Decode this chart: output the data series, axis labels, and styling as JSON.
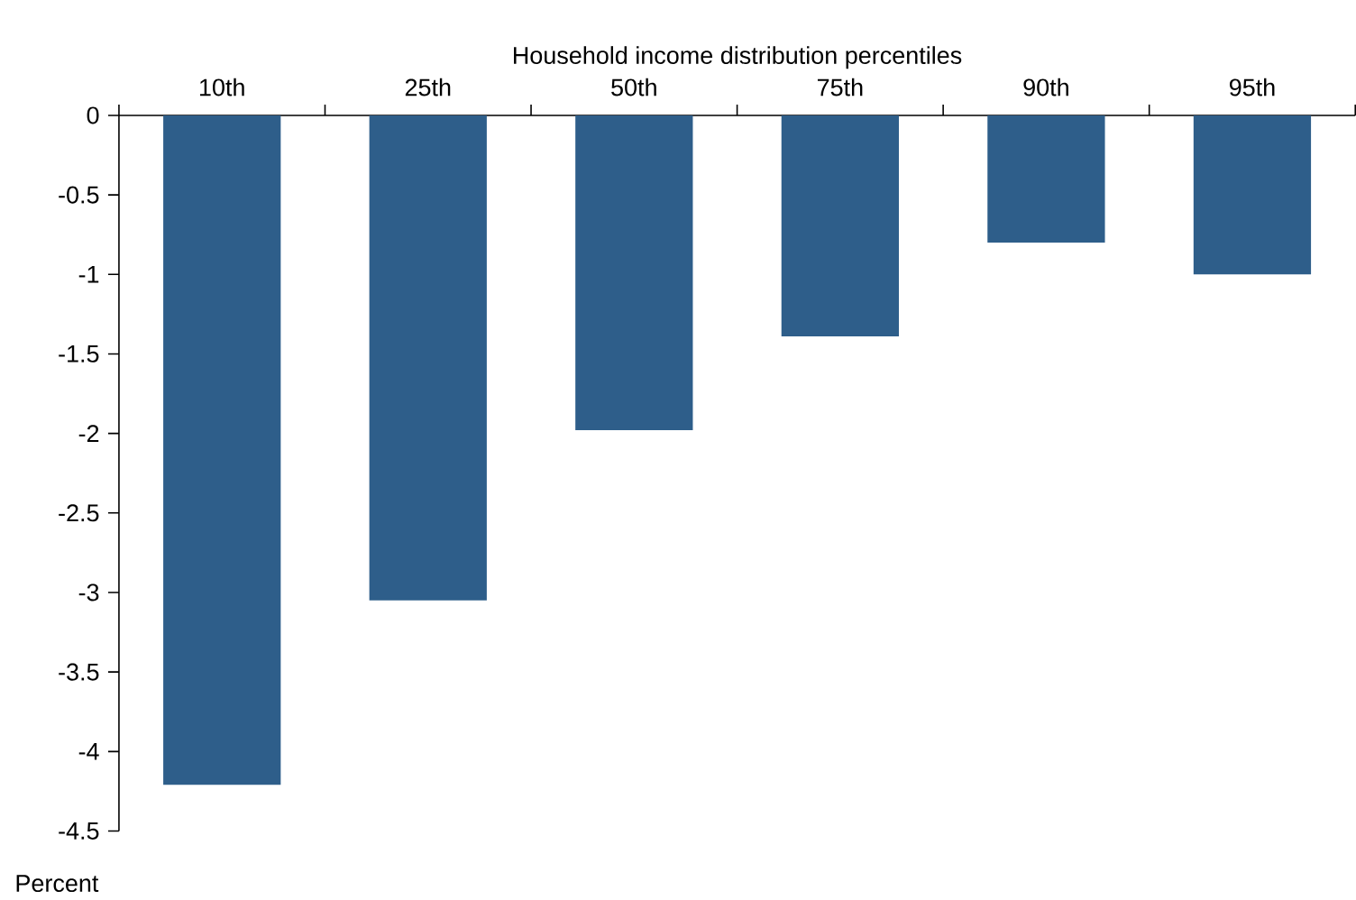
{
  "chart_data": {
    "type": "bar",
    "xlabel": "Household income distribution percentiles",
    "ylabel": "Percent",
    "categories": [
      "10th",
      "25th",
      "50th",
      "75th",
      "90th",
      "95th"
    ],
    "values": [
      -4.21,
      -3.05,
      -1.98,
      -1.39,
      -0.8,
      -1.0
    ],
    "color": "#2e5e8a",
    "ylim": [
      -4.5,
      0
    ],
    "yticks": [
      0,
      -0.5,
      -1,
      -1.5,
      -2,
      -2.5,
      -3,
      -3.5,
      -4,
      -4.5
    ]
  }
}
